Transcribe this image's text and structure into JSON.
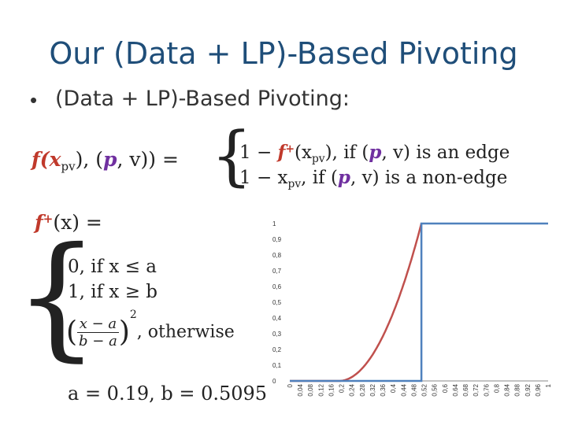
{
  "slide": {
    "title": "Our (Data + LP)-Based Pivoting",
    "bullet": "(Data + LP)-Based Pivoting:"
  },
  "formula": {
    "f_def_lhs": "f(x",
    "f_def_sub": "pv",
    "f_def_mid": "), (",
    "f_def_p": "p",
    "f_def_comma": ", v)) =",
    "case1_a": "1 − ",
    "case1_f": "f",
    "case1_plus": "+",
    "case1_b": "(x",
    "case1_sub": "pv",
    "case1_c": "), if (",
    "case1_p": "p",
    "case1_d": ", v) is an edge",
    "case2_a": "1 − x",
    "case2_sub": "pv",
    "case2_b": ",  if (",
    "case2_p": "p",
    "case2_c": ", v) is a non-edge",
    "fplus_f": "f",
    "fplus_plus": "+",
    "fplus_rest": "(x) =",
    "pc1": "0, if x ≤ a",
    "pc2": "1, if x ≥ b",
    "pc3_num": "x − a",
    "pc3_den": "b − a",
    "pc3_exp": "2",
    "pc3_text": ", otherwise",
    "params": "a = 0.19, b = 0.5095"
  },
  "chart_data": {
    "type": "line",
    "a": 0.19,
    "b": 0.5095,
    "xlim": [
      0,
      1
    ],
    "ylim": [
      0,
      1
    ],
    "x_ticks": [
      "0",
      "0,04",
      "0,08",
      "0,12",
      "0,16",
      "0,2",
      "0,24",
      "0,28",
      "0,32",
      "0,36",
      "0,4",
      "0,44",
      "0,48",
      "0,52",
      "0,56",
      "0,6",
      "0,64",
      "0,68",
      "0,72",
      "0,76",
      "0,8",
      "0,84",
      "0,88",
      "0,92",
      "0,96",
      "1"
    ],
    "y_ticks": [
      "0",
      "0,1",
      "0,2",
      "0,3",
      "0,4",
      "0,5",
      "0,6",
      "0,7",
      "0,8",
      "0,9",
      "1"
    ],
    "series": [
      {
        "color": "#c0504d",
        "desc": "f+ curve (quadratic between a and b)"
      },
      {
        "color": "#4f81bd",
        "desc": "step at b"
      }
    ],
    "grid": false
  }
}
